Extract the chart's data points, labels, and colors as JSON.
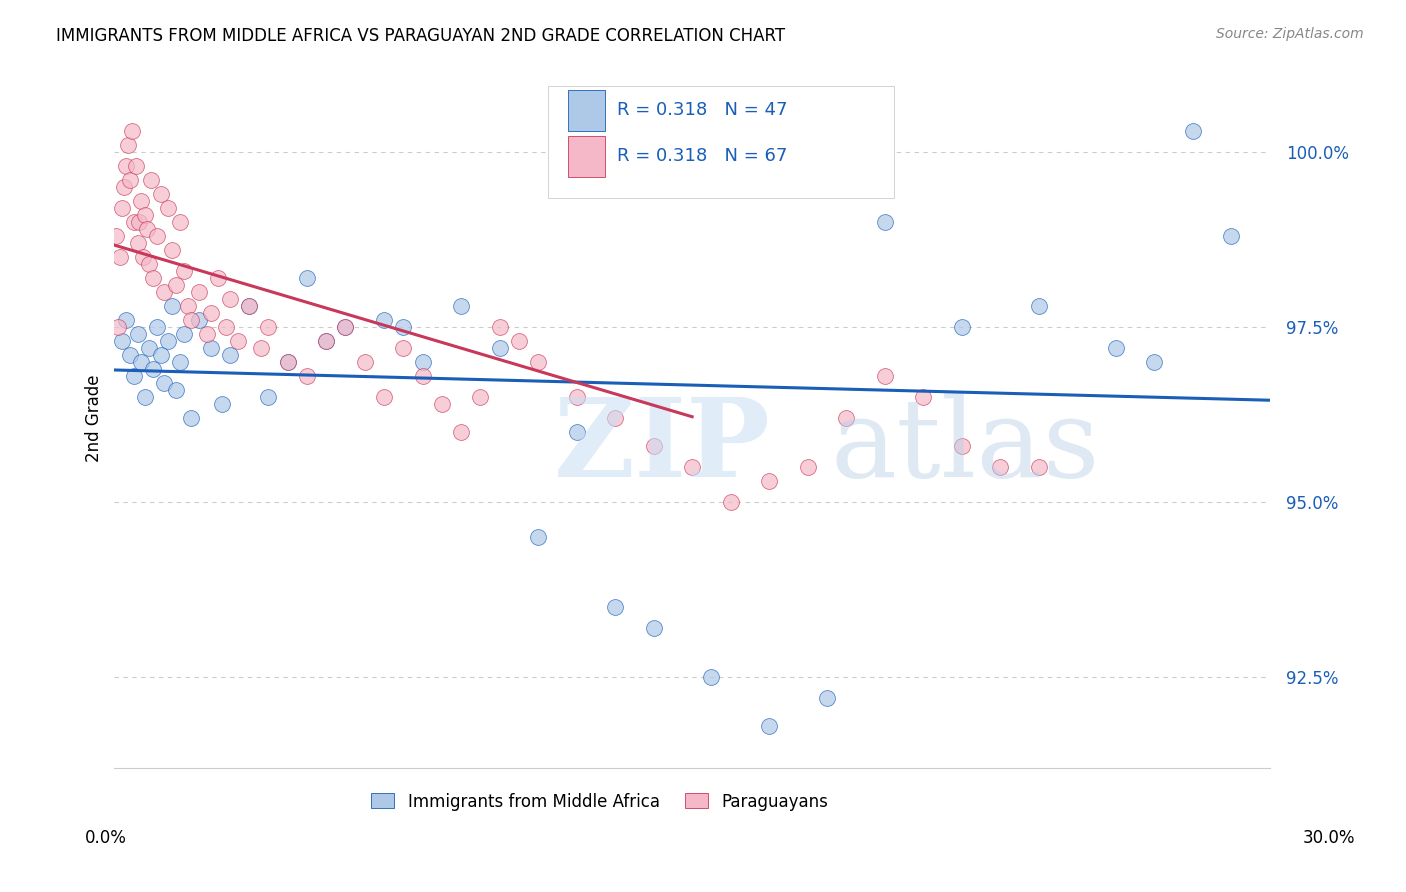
{
  "title": "IMMIGRANTS FROM MIDDLE AFRICA VS PARAGUAYAN 2ND GRADE CORRELATION CHART",
  "source": "Source: ZipAtlas.com",
  "xlabel_bottom_left": "0.0%",
  "xlabel_bottom_right": "30.0%",
  "ylabel": "2nd Grade",
  "yticks": [
    92.5,
    95.0,
    97.5,
    100.0
  ],
  "ytick_labels": [
    "92.5%",
    "95.0%",
    "97.5%",
    "100.0%"
  ],
  "xlim": [
    0.0,
    30.0
  ],
  "ylim": [
    91.2,
    101.2
  ],
  "legend_blue_label": "Immigrants from Middle Africa",
  "legend_pink_label": "Paraguayans",
  "R_blue": "0.318",
  "N_blue": "47",
  "R_pink": "0.318",
  "N_pink": "67",
  "blue_color": "#aec8e8",
  "pink_color": "#f4b8c8",
  "trendline_blue": "#1a5eb8",
  "trendline_pink": "#c8385a",
  "blue_scatter_x": [
    0.2,
    0.3,
    0.4,
    0.5,
    0.6,
    0.7,
    0.8,
    0.9,
    1.0,
    1.1,
    1.2,
    1.3,
    1.4,
    1.5,
    1.6,
    1.7,
    1.8,
    2.0,
    2.2,
    2.5,
    2.8,
    3.0,
    3.5,
    4.0,
    4.5,
    5.0,
    5.5,
    6.0,
    7.0,
    7.5,
    8.0,
    9.0,
    10.0,
    11.0,
    12.0,
    13.0,
    14.0,
    15.5,
    17.0,
    18.5,
    20.0,
    22.0,
    24.0,
    26.0,
    27.0,
    28.0,
    29.0
  ],
  "blue_scatter_y": [
    97.3,
    97.6,
    97.1,
    96.8,
    97.4,
    97.0,
    96.5,
    97.2,
    96.9,
    97.5,
    97.1,
    96.7,
    97.3,
    97.8,
    96.6,
    97.0,
    97.4,
    96.2,
    97.6,
    97.2,
    96.4,
    97.1,
    97.8,
    96.5,
    97.0,
    98.2,
    97.3,
    97.5,
    97.6,
    97.5,
    97.0,
    97.8,
    97.2,
    94.5,
    96.0,
    93.5,
    93.2,
    92.5,
    91.8,
    92.2,
    99.0,
    97.5,
    97.8,
    97.2,
    97.0,
    100.3,
    98.8
  ],
  "pink_scatter_x": [
    0.05,
    0.1,
    0.15,
    0.2,
    0.25,
    0.3,
    0.35,
    0.4,
    0.45,
    0.5,
    0.55,
    0.6,
    0.65,
    0.7,
    0.75,
    0.8,
    0.85,
    0.9,
    0.95,
    1.0,
    1.1,
    1.2,
    1.3,
    1.4,
    1.5,
    1.6,
    1.7,
    1.8,
    1.9,
    2.0,
    2.2,
    2.4,
    2.5,
    2.7,
    2.9,
    3.0,
    3.2,
    3.5,
    3.8,
    4.0,
    4.5,
    5.0,
    5.5,
    6.0,
    6.5,
    7.0,
    7.5,
    8.0,
    8.5,
    9.0,
    9.5,
    10.0,
    10.5,
    11.0,
    12.0,
    13.0,
    14.0,
    15.0,
    16.0,
    17.0,
    18.0,
    19.0,
    20.0,
    21.0,
    22.0,
    23.0,
    24.0
  ],
  "pink_scatter_y": [
    98.8,
    97.5,
    98.5,
    99.2,
    99.5,
    99.8,
    100.1,
    99.6,
    100.3,
    99.0,
    99.8,
    98.7,
    99.0,
    99.3,
    98.5,
    99.1,
    98.9,
    98.4,
    99.6,
    98.2,
    98.8,
    99.4,
    98.0,
    99.2,
    98.6,
    98.1,
    99.0,
    98.3,
    97.8,
    97.6,
    98.0,
    97.4,
    97.7,
    98.2,
    97.5,
    97.9,
    97.3,
    97.8,
    97.2,
    97.5,
    97.0,
    96.8,
    97.3,
    97.5,
    97.0,
    96.5,
    97.2,
    96.8,
    96.4,
    96.0,
    96.5,
    97.5,
    97.3,
    97.0,
    96.5,
    96.2,
    95.8,
    95.5,
    95.0,
    95.3,
    95.5,
    96.2,
    96.8,
    96.5,
    95.8,
    95.5,
    95.5
  ]
}
